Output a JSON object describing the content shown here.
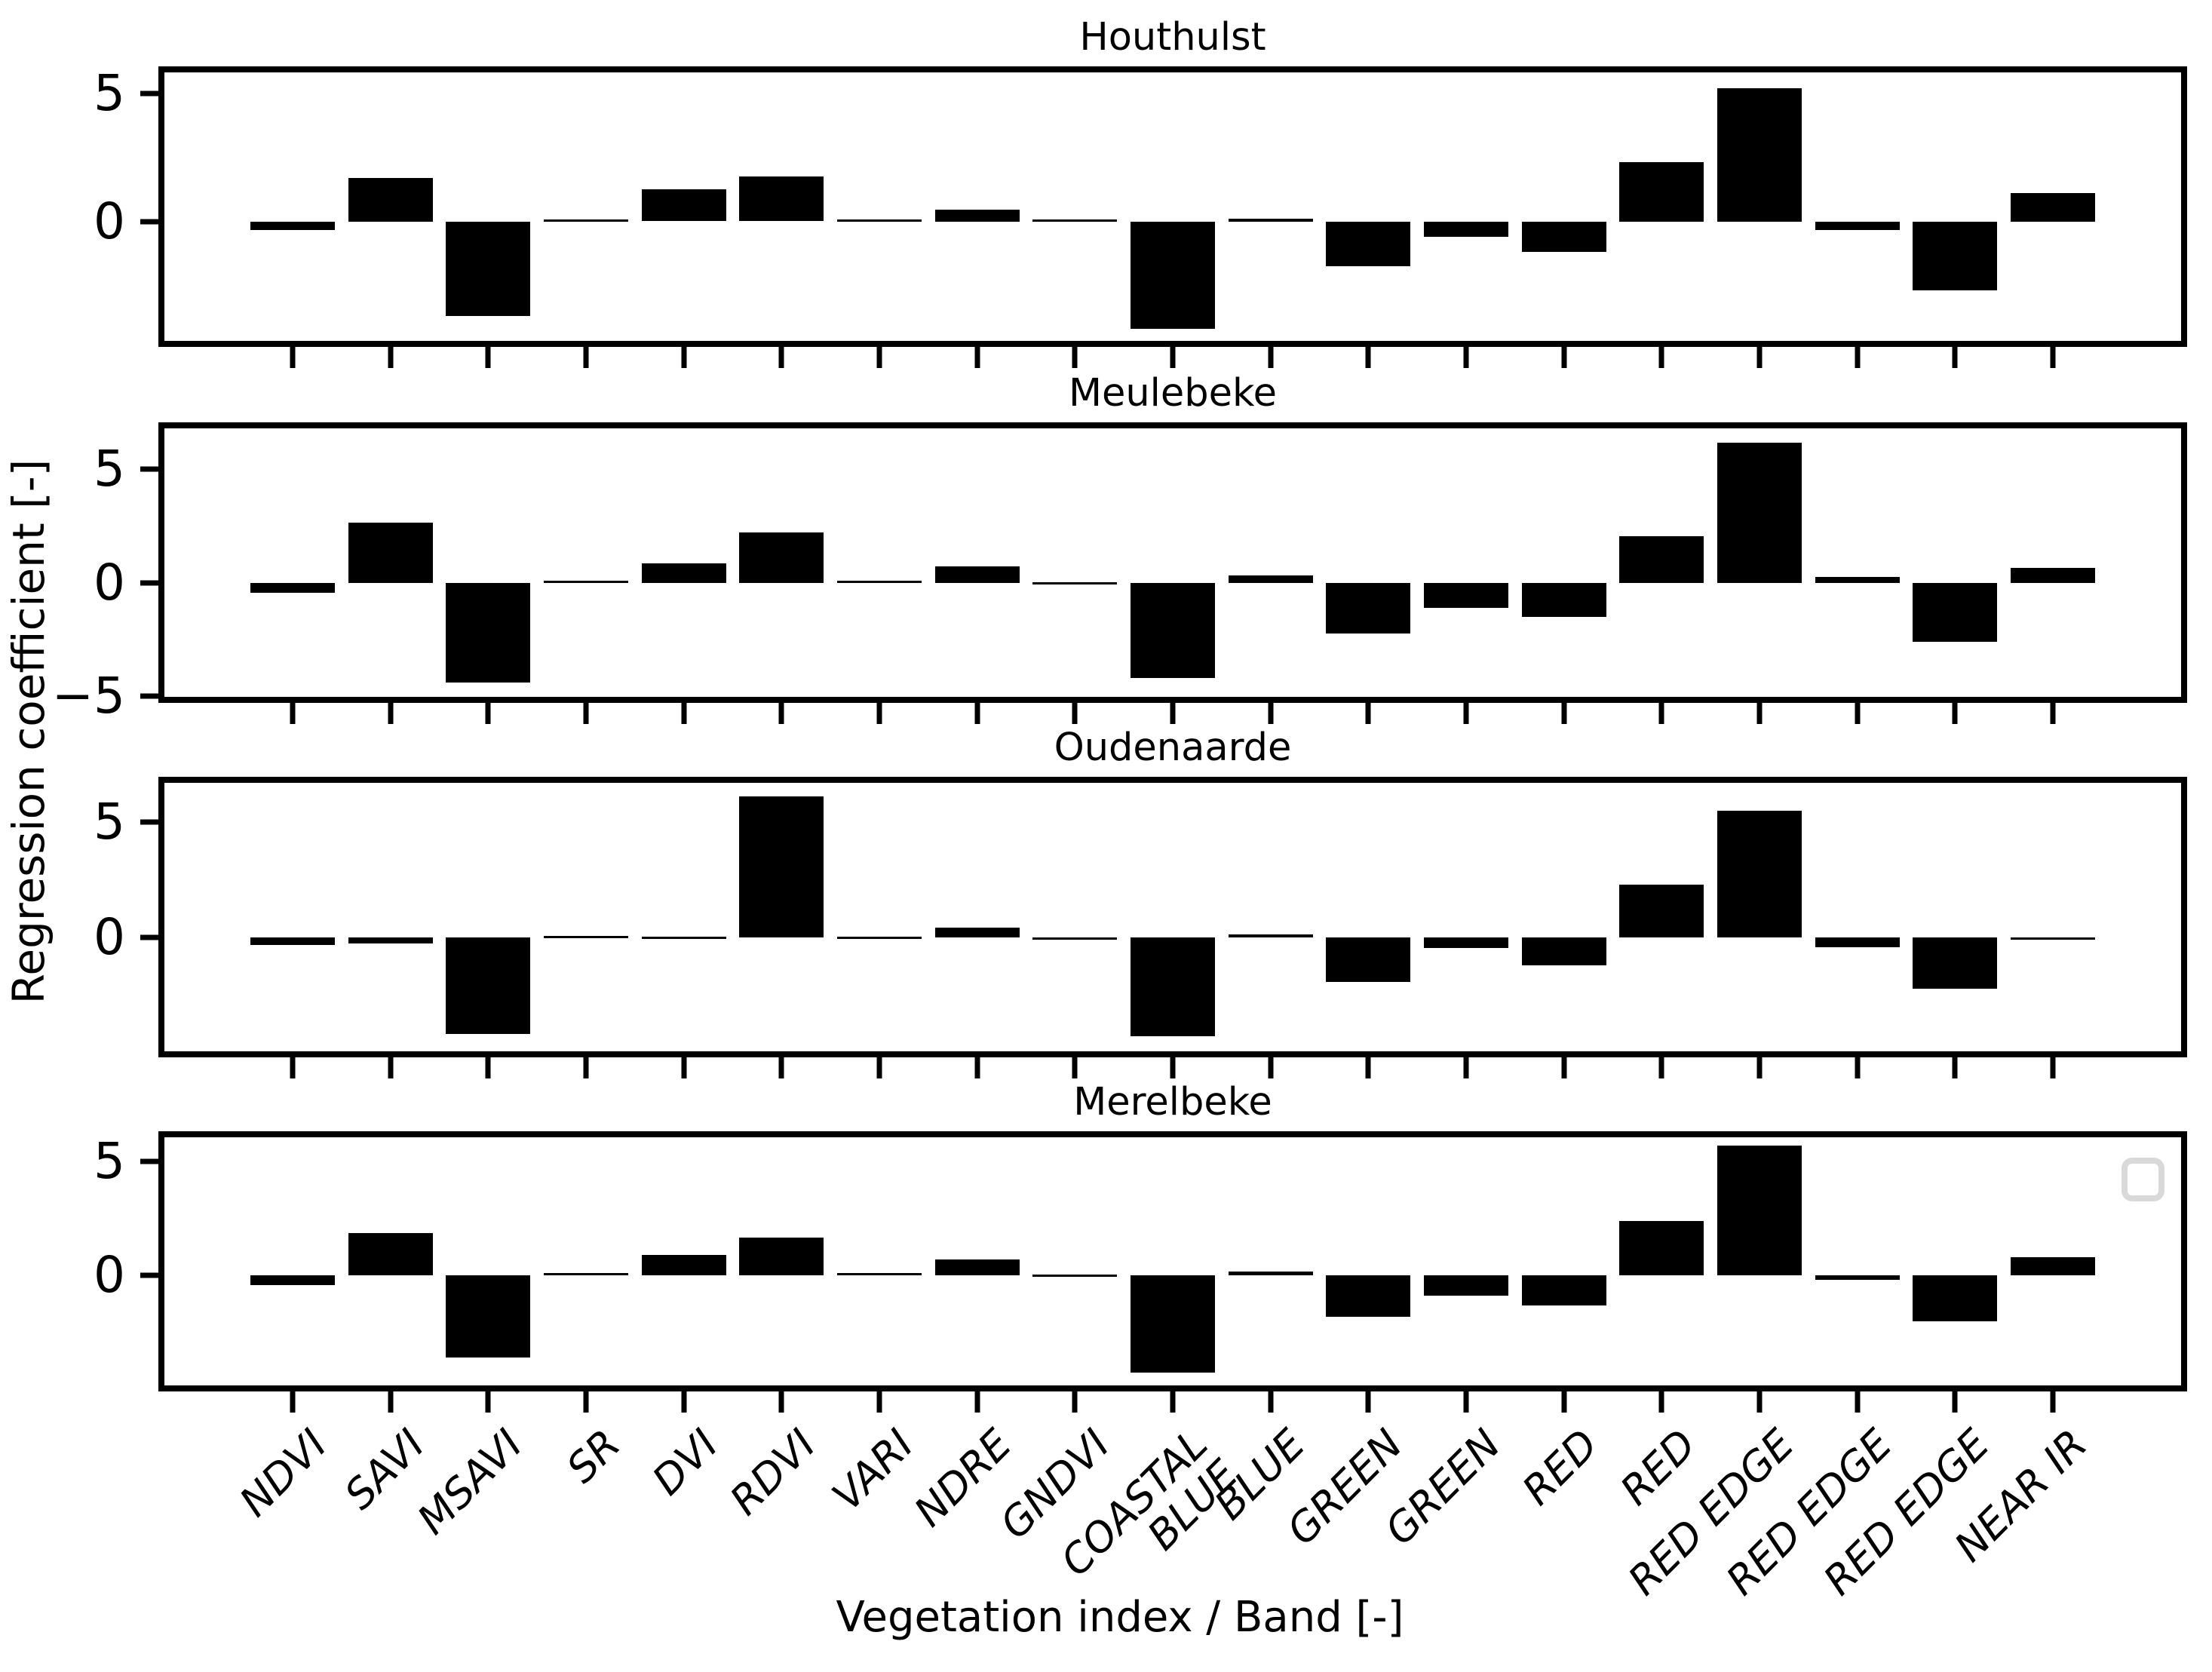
{
  "chart_data": {
    "type": "bar",
    "categories": [
      "NDVI",
      "SAVI",
      "MSAVI",
      "SR",
      "DVI",
      "RDVI",
      "VARI",
      "NDRE",
      "GNDVI",
      "COASTAL\nBLUE",
      "BLUE",
      "GREEN",
      "GREEN",
      "RED",
      "RED",
      "RED EDGE",
      "RED EDGE",
      "RED EDGE",
      "NEAR IR"
    ],
    "xlabel": "Vegetation index / Band [-]",
    "ylabel": "Regression coefficient [-]",
    "grid": false,
    "bar_color": "#000000",
    "legend": {
      "entries": [],
      "border_color": "#d9d9d9",
      "position": "upper-right-of-merelbeke"
    },
    "series": [
      {
        "name": "Houthulst",
        "ylim": [
          -4.67,
          5.82
        ],
        "yticks": [
          {
            "value": 5,
            "label": "5"
          },
          {
            "value": 0,
            "label": "0"
          }
        ],
        "values": [
          -0.35,
          1.7,
          -3.7,
          0.05,
          1.25,
          1.75,
          0.05,
          0.45,
          0.05,
          -4.2,
          0.1,
          -1.75,
          -0.6,
          -1.2,
          2.3,
          5.2,
          -0.35,
          -2.7,
          1.1
        ]
      },
      {
        "name": "Meulebeke",
        "ylim": [
          -5.02,
          6.78
        ],
        "yticks": [
          {
            "value": 5,
            "label": "5"
          },
          {
            "value": 0,
            "label": "0"
          },
          {
            "value": -5,
            "label": "−5"
          }
        ],
        "values": [
          -0.45,
          2.65,
          -4.4,
          0.05,
          0.85,
          2.2,
          0.05,
          0.7,
          -0.05,
          -4.2,
          0.3,
          -2.25,
          -1.1,
          -1.5,
          2.05,
          6.15,
          0.25,
          -2.6,
          0.65
        ]
      },
      {
        "name": "Oudenaarde",
        "ylim": [
          -4.9,
          6.69
        ],
        "yticks": [
          {
            "value": 5,
            "label": "5"
          },
          {
            "value": 0,
            "label": "0"
          }
        ],
        "values": [
          -0.3,
          -0.25,
          -4.15,
          0.05,
          0.03,
          6.1,
          0.03,
          0.45,
          -0.05,
          -4.25,
          0.15,
          -1.9,
          -0.45,
          -1.2,
          2.3,
          5.5,
          -0.4,
          -2.2,
          -0.05
        ]
      },
      {
        "name": "Merelbeke",
        "ylim": [
          -4.87,
          6.08
        ],
        "yticks": [
          {
            "value": 5,
            "label": "5"
          },
          {
            "value": 0,
            "label": "0"
          }
        ],
        "values": [
          -0.45,
          1.85,
          -3.65,
          0.05,
          0.9,
          1.65,
          0.05,
          0.7,
          -0.05,
          -4.3,
          0.15,
          -1.85,
          -0.9,
          -1.35,
          2.4,
          5.7,
          -0.2,
          -2.05,
          0.8
        ]
      }
    ]
  }
}
